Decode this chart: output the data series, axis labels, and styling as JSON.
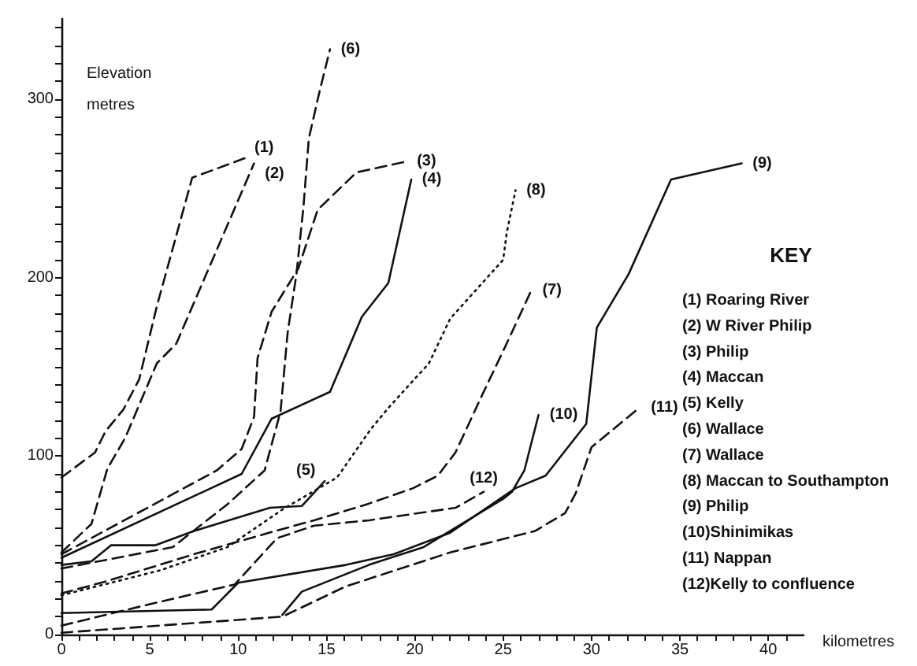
{
  "chart_data": {
    "type": "line",
    "ylabel": "Elevation\nmetres",
    "xlabel": "kilometres",
    "marker": "none",
    "xlim": [
      0,
      42
    ],
    "xticks": [
      0,
      {
        "value": 1,
        "label": null
      },
      {
        "value": 2,
        "label": null
      },
      {
        "value": 3,
        "label": null
      },
      {
        "value": 4,
        "label": null
      },
      5,
      {
        "value": 6,
        "label": null
      },
      {
        "value": 7,
        "label": null
      },
      {
        "value": 8,
        "label": null
      },
      {
        "value": 9,
        "label": null
      },
      10,
      {
        "value": 11,
        "label": null
      },
      {
        "value": 12,
        "label": null
      },
      {
        "value": 13,
        "label": null
      },
      {
        "value": 14,
        "label": null
      },
      15,
      {
        "value": 16,
        "label": null
      },
      {
        "value": 17,
        "label": null
      },
      {
        "value": 18,
        "label": null
      },
      {
        "value": 19,
        "label": null
      },
      20,
      {
        "value": 21,
        "label": null
      },
      {
        "value": 22,
        "label": null
      },
      {
        "value": 23,
        "label": null
      },
      {
        "value": 24,
        "label": null
      },
      25,
      {
        "value": 26,
        "label": null
      },
      {
        "value": 27,
        "label": null
      },
      {
        "value": 28,
        "label": null
      },
      {
        "value": 29,
        "label": null
      },
      30,
      {
        "value": 31,
        "label": null
      },
      {
        "value": 32,
        "label": null
      },
      {
        "value": 33,
        "label": null
      },
      {
        "value": 34,
        "label": null
      },
      35,
      {
        "value": 36,
        "label": null
      },
      {
        "value": 37,
        "label": null
      },
      {
        "value": 38,
        "label": null
      },
      {
        "value": 39,
        "label": null
      },
      40,
      {
        "value": 41,
        "label": null
      }
    ],
    "ylim": [
      0,
      345
    ],
    "yticks": [
      0,
      {
        "value": 10,
        "label": null
      },
      {
        "value": 20,
        "label": null
      },
      {
        "value": 30,
        "label": null
      },
      {
        "value": 40,
        "label": null
      },
      {
        "value": 50,
        "label": null
      },
      {
        "value": 60,
        "label": null
      },
      {
        "value": 70,
        "label": null
      },
      {
        "value": 80,
        "label": null
      },
      {
        "value": 90,
        "label": null
      },
      100,
      {
        "value": 110,
        "label": null
      },
      {
        "value": 120,
        "label": null
      },
      {
        "value": 130,
        "label": null
      },
      {
        "value": 140,
        "label": null
      },
      {
        "value": 150,
        "label": null
      },
      {
        "value": 160,
        "label": null
      },
      {
        "value": 170,
        "label": null
      },
      {
        "value": 180,
        "label": null
      },
      {
        "value": 190,
        "label": null
      },
      200,
      {
        "value": 210,
        "label": null
      },
      {
        "value": 220,
        "label": null
      },
      {
        "value": 230,
        "label": null
      },
      {
        "value": 240,
        "label": null
      },
      {
        "value": 250,
        "label": null
      },
      {
        "value": 260,
        "label": null
      },
      {
        "value": 270,
        "label": null
      },
      {
        "value": 280,
        "label": null
      },
      {
        "value": 290,
        "label": null
      },
      300,
      {
        "value": 310,
        "label": null
      },
      {
        "value": 320,
        "label": null
      },
      {
        "value": 330,
        "label": null
      },
      {
        "value": 340,
        "label": null
      }
    ],
    "series": [
      {
        "name": "(1)",
        "color": "#111111",
        "line_style": "dashed",
        "x": [
          0,
          1.9,
          2.5,
          3.5,
          4.4,
          5.4,
          7.4,
          10.4
        ],
        "values": [
          88,
          102,
          114,
          126,
          143,
          184,
          256,
          267
        ]
      },
      {
        "name": "(2)",
        "color": "#111111",
        "line_style": "dashed",
        "x": [
          0,
          1.7,
          2.6,
          3.6,
          5.4,
          6.5,
          10.9
        ],
        "values": [
          46,
          62,
          93,
          110,
          152,
          163,
          264
        ]
      },
      {
        "name": "(3)",
        "color": "#111111",
        "line_style": "dashed",
        "x": [
          0,
          8.8,
          10.2,
          10.9,
          11.1,
          11.9,
          13.4,
          14.5,
          16.7,
          19.5
        ],
        "values": [
          45,
          92,
          104,
          122,
          155,
          181,
          205,
          238,
          259,
          265
        ]
      },
      {
        "name": "(4)",
        "color": "#111111",
        "line_style": "solid",
        "x": [
          0,
          10.2,
          11.9,
          15.2,
          17,
          18.5,
          19.8
        ],
        "values": [
          43,
          90,
          121,
          136,
          178,
          197,
          255
        ]
      },
      {
        "name": "(5)",
        "color": "#111111",
        "line_style": "solid",
        "x": [
          0,
          1.7,
          2.8,
          5.3,
          7.5,
          11.8,
          13.6,
          14.9
        ],
        "values": [
          39,
          41,
          50,
          50,
          58,
          71,
          72,
          86
        ]
      },
      {
        "name": "(6)",
        "color": "#111111",
        "line_style": "dashed",
        "x": [
          0,
          6.3,
          9.4,
          11.5,
          12.4,
          12.8,
          13.3,
          13.7,
          14,
          14.6,
          15.2
        ],
        "values": [
          37,
          49,
          73,
          92,
          125,
          169,
          202,
          240,
          278,
          304,
          328
        ]
      },
      {
        "name": "(7)",
        "color": "#111111",
        "line_style": "dashed",
        "x": [
          0,
          2.6,
          7.5,
          12.1,
          14.3,
          17.3,
          19.9,
          21.3,
          22.3,
          23.8,
          25.1,
          26.6
        ],
        "values": [
          23,
          30,
          45,
          58,
          64,
          73,
          82,
          89,
          102,
          134,
          161,
          193
        ]
      },
      {
        "name": "(8)",
        "color": "#111111",
        "line_style": "dotted",
        "x": [
          0,
          5.6,
          9.4,
          12.5,
          15.6,
          17.5,
          18.5,
          20.8,
          22,
          25,
          25.2,
          25.7
        ],
        "values": [
          22,
          36,
          49,
          70,
          88,
          115,
          127,
          152,
          177,
          210,
          225,
          249
        ]
      },
      {
        "name": "(9)",
        "color": "#111111",
        "line_style": "solid",
        "x": [
          0,
          8.5,
          10,
          16.1,
          18.8,
          22,
          25.7,
          27.4,
          29.7,
          30.3,
          32.1,
          34.5,
          38.5
        ],
        "values": [
          12,
          14,
          29,
          39,
          45,
          57,
          82,
          89,
          118,
          172,
          202,
          255,
          264
        ]
      },
      {
        "name": "(10)",
        "color": "#111111",
        "line_style": "solid",
        "x": [
          12.5,
          13.6,
          17.4,
          20.5,
          25,
          25.5,
          26.2,
          27
        ],
        "values": [
          11,
          24,
          39,
          49,
          76,
          80,
          92,
          123
        ]
      },
      {
        "name": "(11)",
        "color": "#111111",
        "line_style": "dashed",
        "x": [
          0,
          12.5,
          16.1,
          22,
          26.8,
          28.5,
          29.1,
          30,
          32.7
        ],
        "values": [
          1,
          10,
          27,
          46,
          58,
          68,
          79,
          105,
          127
        ]
      },
      {
        "name": "(12)",
        "color": "#111111",
        "line_style": "dashed",
        "x": [
          0,
          5,
          9.8,
          12.2,
          14.3,
          17.4,
          22.3,
          23.9
        ],
        "values": [
          5,
          17,
          28,
          54,
          61,
          64,
          71,
          80
        ]
      }
    ],
    "annotations": [
      "KEY",
      "(1) Roaring River",
      "(2) W River Philip",
      "(3) Philip",
      "(4) Maccan",
      "(5) Kelly",
      "(6) Wallace",
      "(7) Wallace",
      "(8) Maccan to Southampton",
      "(9) Philip",
      "(10)Shinimikas",
      "(11) Nappan",
      "(12)Kelly to confluence"
    ]
  }
}
